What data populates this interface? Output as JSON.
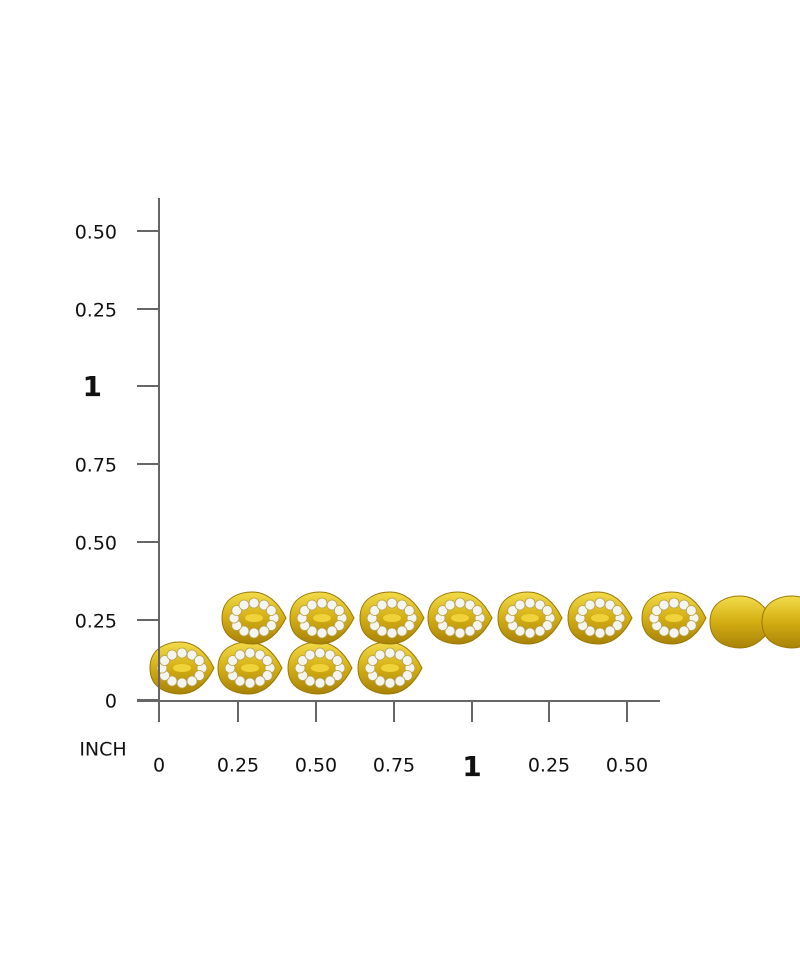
{
  "ruler": {
    "unit": "INCH",
    "vertical_labels": [
      "0.50",
      "0.25",
      "1",
      "0.75",
      "0.50",
      "0.25",
      "0"
    ],
    "horizontal_labels": [
      "0",
      "0.25",
      "0.50",
      "0.75",
      "1",
      "0.25",
      "0.50"
    ]
  }
}
